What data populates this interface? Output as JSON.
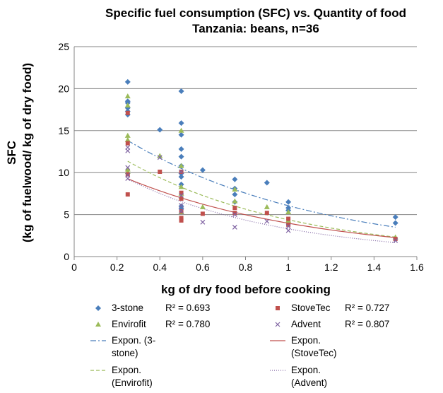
{
  "chart_data": {
    "type": "scatter",
    "title": "Specific fuel consumption (SFC) vs. Quantity of food",
    "subtitle": "Tanzania: beans, n=36",
    "xlabel": "kg of dry food before cooking",
    "ylabel_line1": "SFC",
    "ylabel_line2": "(kg of fuelwood/ kg of dry food)",
    "xlim": [
      0,
      1.6
    ],
    "ylim": [
      0,
      25
    ],
    "x_ticks": [
      "0",
      "0.2",
      "0.4",
      "0.6",
      "0.8",
      "1",
      "1.2",
      "1.4",
      "1.6"
    ],
    "y_ticks": [
      "0",
      "5",
      "10",
      "15",
      "20",
      "25"
    ],
    "grid": "horizontal",
    "legend_placement": "bottom",
    "series": [
      {
        "name": "3-stone",
        "marker": "diamond",
        "color": "#4a7ebb",
        "r2": "R² = 0.693",
        "points": [
          [
            0.25,
            20.8
          ],
          [
            0.25,
            18.3
          ],
          [
            0.25,
            17.7
          ],
          [
            0.25,
            17.3
          ],
          [
            0.25,
            16.9
          ],
          [
            0.25,
            18.5
          ],
          [
            0.4,
            15.1
          ],
          [
            0.5,
            19.7
          ],
          [
            0.5,
            15.9
          ],
          [
            0.5,
            14.5
          ],
          [
            0.5,
            12.8
          ],
          [
            0.5,
            11.9
          ],
          [
            0.5,
            10.8
          ],
          [
            0.5,
            9.9
          ],
          [
            0.5,
            9.5
          ],
          [
            0.5,
            8.6
          ],
          [
            0.5,
            6.0
          ],
          [
            0.5,
            5.7
          ],
          [
            0.6,
            10.3
          ],
          [
            0.75,
            9.2
          ],
          [
            0.75,
            8.1
          ],
          [
            0.75,
            7.4
          ],
          [
            0.75,
            6.5
          ],
          [
            0.9,
            8.8
          ],
          [
            1.0,
            6.5
          ],
          [
            1.0,
            5.8
          ],
          [
            1.0,
            5.5
          ],
          [
            1.5,
            4.7
          ],
          [
            1.5,
            4.0
          ]
        ]
      },
      {
        "name": "Envirofit",
        "marker": "triangle",
        "color": "#9bbb59",
        "r2": "R² = 0.780",
        "points": [
          [
            0.25,
            19.1
          ],
          [
            0.25,
            18.0
          ],
          [
            0.25,
            14.4
          ],
          [
            0.25,
            13.9
          ],
          [
            0.25,
            10.4
          ],
          [
            0.25,
            10.1
          ],
          [
            0.4,
            12.0
          ],
          [
            0.5,
            15.0
          ],
          [
            0.5,
            10.8
          ],
          [
            0.5,
            8.3
          ],
          [
            0.5,
            7.5
          ],
          [
            0.5,
            7.1
          ],
          [
            0.5,
            5.3
          ],
          [
            0.6,
            5.9
          ],
          [
            0.75,
            8.0
          ],
          [
            0.75,
            6.6
          ],
          [
            0.9,
            5.9
          ],
          [
            1.0,
            5.3
          ],
          [
            1.0,
            4.3
          ],
          [
            1.5,
            2.3
          ]
        ]
      },
      {
        "name": "StoveTec",
        "marker": "square",
        "color": "#c0504d",
        "r2": "R² = 0.727",
        "points": [
          [
            0.25,
            17.1
          ],
          [
            0.25,
            13.5
          ],
          [
            0.25,
            9.8
          ],
          [
            0.25,
            7.4
          ],
          [
            0.4,
            10.1
          ],
          [
            0.5,
            10.1
          ],
          [
            0.5,
            7.6
          ],
          [
            0.5,
            6.9
          ],
          [
            0.5,
            5.4
          ],
          [
            0.5,
            4.6
          ],
          [
            0.5,
            4.3
          ],
          [
            0.6,
            5.1
          ],
          [
            0.75,
            5.8
          ],
          [
            0.75,
            5.2
          ],
          [
            0.9,
            5.2
          ],
          [
            1.0,
            4.5
          ],
          [
            1.0,
            3.8
          ],
          [
            1.5,
            2.1
          ]
        ]
      },
      {
        "name": "Advent",
        "marker": "x",
        "color": "#8064a2",
        "r2": "R² = 0.807",
        "points": [
          [
            0.25,
            13.0
          ],
          [
            0.25,
            12.6
          ],
          [
            0.25,
            10.6
          ],
          [
            0.25,
            9.7
          ],
          [
            0.25,
            9.3
          ],
          [
            0.4,
            11.8
          ],
          [
            0.5,
            10.1
          ],
          [
            0.5,
            7.3
          ],
          [
            0.5,
            6.1
          ],
          [
            0.5,
            5.4
          ],
          [
            0.6,
            4.1
          ],
          [
            0.75,
            5.0
          ],
          [
            0.75,
            3.5
          ],
          [
            0.9,
            4.2
          ],
          [
            1.0,
            3.6
          ],
          [
            1.0,
            3.1
          ],
          [
            1.5,
            1.9
          ]
        ]
      }
    ],
    "trendlines": [
      {
        "name": "Expon. (3-stone)",
        "legend_lines": [
          "Expon. (3-",
          "stone)"
        ],
        "a": 18.2,
        "b": -1.1,
        "color": "#4a7ebb",
        "dash": "8,3,2,3"
      },
      {
        "name": "Expon. (Envirofit)",
        "legend_lines": [
          "Expon.",
          "(Envirofit)"
        ],
        "a": 15.6,
        "b": -1.27,
        "color": "#9bbb59",
        "dash": "5,3"
      },
      {
        "name": "Expon. (StoveTec)",
        "legend_lines": [
          "Expon.",
          "(StoveTec)"
        ],
        "a": 12.3,
        "b": -1.13,
        "color": "#c0504d",
        "dash": ""
      },
      {
        "name": "Expon. (Advent)",
        "legend_lines": [
          "Expon.",
          "(Advent)"
        ],
        "a": 13.0,
        "b": -1.37,
        "color": "#8064a2",
        "dash": "1,2"
      }
    ]
  }
}
